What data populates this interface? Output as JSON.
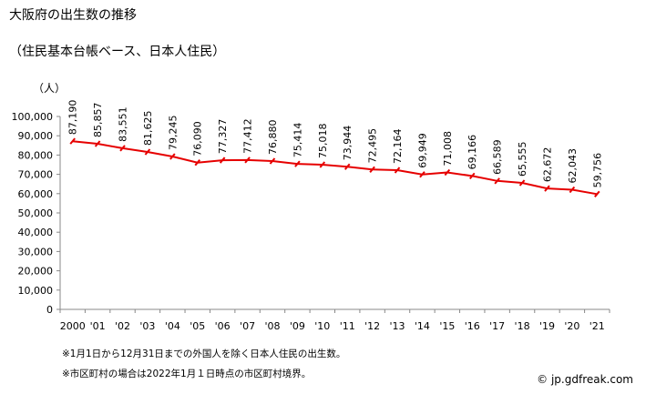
{
  "page": {
    "title": "大阪府の出生数の推移",
    "subtitle": "（住民基本台帳ベース、日本人住民）",
    "unit_label": "（人）",
    "notes": [
      "※1月1日から12月31日までの外国人を除く日本人住民の出生数。",
      "※市区町村の場合は2022年1月１日時点の市区町村境界。"
    ],
    "credit": "© jp.gdfreak.com"
  },
  "chart_data": {
    "type": "line",
    "title": "大阪府の出生数の推移",
    "subtitle": "（住民基本台帳ベース、日本人住民）",
    "ylabel": "（人）",
    "ylim": [
      0,
      100000
    ],
    "yticks": [
      0,
      10000,
      20000,
      30000,
      40000,
      50000,
      60000,
      70000,
      80000,
      90000,
      100000
    ],
    "ytick_labels": [
      "0",
      "10,000",
      "20,000",
      "30,000",
      "40,000",
      "50,000",
      "60,000",
      "70,000",
      "80,000",
      "90,000",
      "100,000"
    ],
    "categories": [
      "2000",
      "'01",
      "'02",
      "'03",
      "'04",
      "'05",
      "'06",
      "'07",
      "'08",
      "'09",
      "'10",
      "'11",
      "'12",
      "'13",
      "'14",
      "'15",
      "'16",
      "'17",
      "'18",
      "'19",
      "'20",
      "'21"
    ],
    "values": [
      87190,
      85857,
      83551,
      81625,
      79245,
      76090,
      77327,
      77412,
      76880,
      75414,
      75018,
      73944,
      72495,
      72164,
      69949,
      71008,
      69166,
      66589,
      65555,
      62672,
      62043,
      59756
    ],
    "value_labels": [
      "87,190",
      "85,857",
      "83,551",
      "81,625",
      "79,245",
      "76,090",
      "77,327",
      "77,412",
      "76,880",
      "75,414",
      "75,018",
      "73,944",
      "72,495",
      "72,164",
      "69,949",
      "71,008",
      "69,166",
      "66,589",
      "65,555",
      "62,672",
      "62,043",
      "59,756"
    ],
    "grid": false,
    "legend": "none",
    "line_color": "#e60000"
  }
}
